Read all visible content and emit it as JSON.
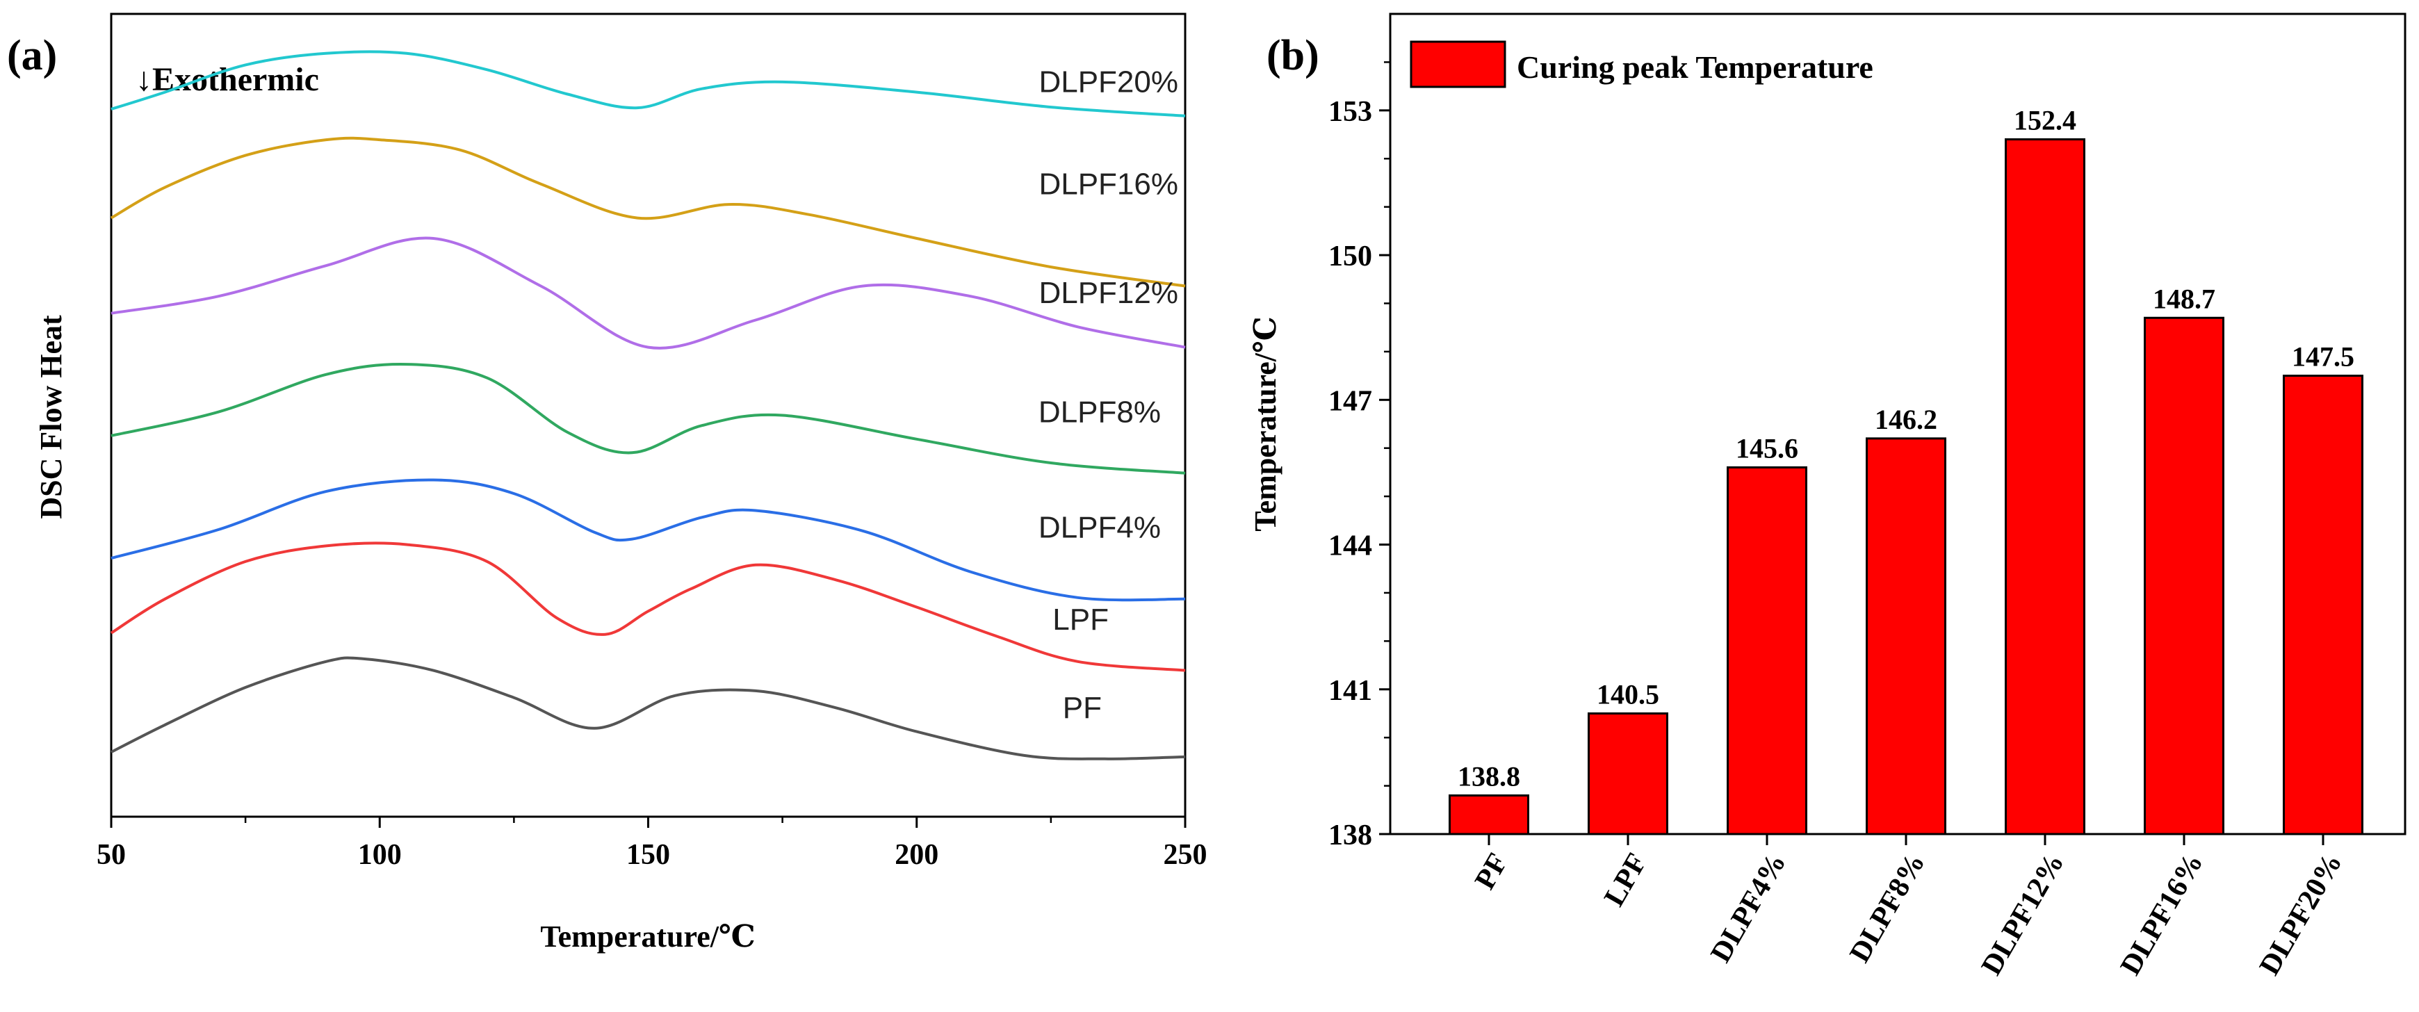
{
  "chart_data": [
    {
      "panel": "(a)",
      "type": "line",
      "title": "",
      "xlabel": "Temperature/℃",
      "ylabel": "DSC Flow Heat",
      "xlim": [
        50,
        250
      ],
      "xticks": [
        50,
        100,
        150,
        200,
        250
      ],
      "annotation": "↓Exothermic",
      "note": "stacked DSC curves; y values in arbitrary offset units (higher = up)",
      "series": [
        {
          "name": "DLPF20%",
          "color": "#22c8cf",
          "x": [
            50,
            60,
            75,
            90,
            105,
            120,
            135,
            148,
            160,
            175,
            200,
            225,
            250
          ],
          "y": [
            8.6,
            8.85,
            9.25,
            9.42,
            9.42,
            9.18,
            8.82,
            8.62,
            8.9,
            9.0,
            8.85,
            8.63,
            8.5
          ]
        },
        {
          "name": "DLPF16%",
          "color": "#d4a017",
          "x": [
            50,
            60,
            75,
            90,
            100,
            115,
            130,
            148,
            165,
            180,
            200,
            225,
            250
          ],
          "y": [
            7.0,
            7.45,
            7.92,
            8.15,
            8.15,
            8.0,
            7.5,
            7.0,
            7.2,
            7.05,
            6.7,
            6.28,
            6.0
          ]
        },
        {
          "name": "DLPF12%",
          "color": "#b06ee8",
          "x": [
            50,
            70,
            90,
            110,
            130,
            150,
            170,
            190,
            210,
            230,
            250
          ],
          "y": [
            5.6,
            5.85,
            6.3,
            6.7,
            6.0,
            5.1,
            5.5,
            6.0,
            5.85,
            5.4,
            5.1
          ]
        },
        {
          "name": "DLPF8%",
          "color": "#30a860",
          "x": [
            50,
            70,
            90,
            105,
            120,
            135,
            147,
            160,
            175,
            200,
            225,
            250
          ],
          "y": [
            3.8,
            4.15,
            4.7,
            4.85,
            4.65,
            3.85,
            3.55,
            3.95,
            4.1,
            3.75,
            3.4,
            3.25
          ]
        },
        {
          "name": "DLPF4%",
          "color": "#2a6ee6",
          "x": [
            50,
            70,
            90,
            110,
            125,
            140,
            147,
            160,
            170,
            190,
            210,
            230,
            250
          ],
          "y": [
            2.0,
            2.42,
            2.98,
            3.15,
            2.95,
            2.38,
            2.28,
            2.6,
            2.7,
            2.4,
            1.8,
            1.42,
            1.4
          ]
        },
        {
          "name": "LPF",
          "color": "#f03838",
          "x": [
            50,
            60,
            75,
            90,
            105,
            120,
            133,
            142,
            150,
            158,
            170,
            185,
            200,
            215,
            230,
            250
          ],
          "y": [
            0.9,
            1.4,
            1.95,
            2.18,
            2.2,
            1.95,
            1.12,
            0.88,
            1.22,
            1.55,
            1.9,
            1.68,
            1.28,
            0.85,
            0.48,
            0.35
          ]
        },
        {
          "name": "PF",
          "color": "#555555",
          "x": [
            50,
            60,
            75,
            90,
            97,
            110,
            125,
            140,
            155,
            170,
            185,
            200,
            220,
            235,
            250
          ],
          "y": [
            -0.85,
            -0.45,
            0.1,
            0.48,
            0.52,
            0.35,
            -0.05,
            -0.5,
            -0.02,
            0.05,
            -0.2,
            -0.55,
            -0.9,
            -0.95,
            -0.92
          ]
        }
      ]
    },
    {
      "panel": "(b)",
      "type": "bar",
      "title": "",
      "xlabel": "",
      "ylabel": "Temperature/℃",
      "ylim": [
        138,
        155
      ],
      "yticks": [
        138,
        141,
        144,
        147,
        150,
        153
      ],
      "legend": "Curing peak Temperature",
      "legend_position": "top-left",
      "categories": [
        "PF",
        "LPF",
        "DLPF4%",
        "DLPF8%",
        "DLPF12%",
        "DLPF16%",
        "DLPF20%"
      ],
      "values": [
        138.8,
        140.5,
        145.6,
        146.2,
        152.4,
        148.7,
        147.5
      ],
      "value_labels": [
        "138.8",
        "140.5",
        "145.6",
        "146.2",
        "152.4",
        "148.7",
        "147.5"
      ],
      "bar_color": "#ff0000"
    }
  ]
}
